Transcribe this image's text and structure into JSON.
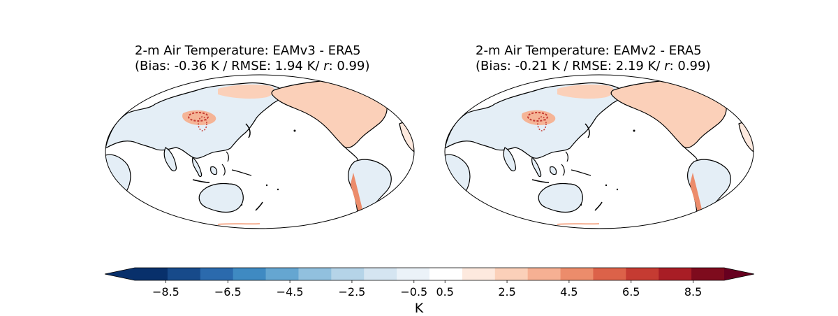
{
  "panels": [
    {
      "title_line1": "2-m Air Temperature: EAMv3 - ERA5",
      "title_line2_prefix": "(Bias: -0.36 K / RMSE: 1.94 K/ ",
      "title_r": "r",
      "title_line2_suffix": ": 0.99)"
    },
    {
      "title_line1": "2-m Air Temperature: EAMv2 - ERA5",
      "title_line2_prefix": "(Bias: -0.21 K / RMSE: 2.19 K/ ",
      "title_r": "r",
      "title_line2_suffix": ": 0.99)"
    }
  ],
  "colorbar": {
    "label": "K",
    "ticks": [
      "−8.5",
      "−6.5",
      "−4.5",
      "−2.5",
      "−0.5",
      "0.5",
      "2.5",
      "4.5",
      "6.5",
      "8.5"
    ],
    "colors": [
      "#08306b",
      "#174a8a",
      "#2b6aad",
      "#3f8ac2",
      "#65a6d1",
      "#91c0de",
      "#b5d4e8",
      "#d5e5f1",
      "#ebf2f8",
      "#ffffff",
      "#fde9de",
      "#fbd0b9",
      "#f6b093",
      "#ec8c6b",
      "#dc6249",
      "#c53b32",
      "#a81d25",
      "#7e0b1d"
    ],
    "left_extend_color": "#08306b",
    "right_extend_color": "#67001f"
  }
}
